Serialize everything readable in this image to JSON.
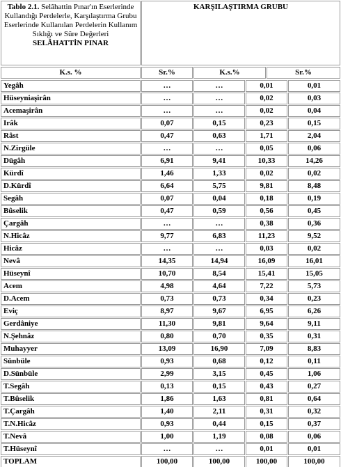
{
  "caption": {
    "label": "Tablo 2.1.",
    "text": "Selâhattin Pınar'ın Eserlerinde Kullandığı Perdelerle, Karşılaştırma Grubu Eserlerinde Kullanılan Perdelerin Kullanım Sıklığı ve Süre Değerleri",
    "author": "SELÂHATTİN PINAR"
  },
  "group_title": "KARŞILAŞTIRMA GRUBU",
  "columns": [
    "K.s. %",
    "Sr.%",
    "K.s.%",
    "Sr.%"
  ],
  "rows": [
    [
      "Yegâh",
      "…",
      "…",
      "0,01",
      "0,01"
    ],
    [
      "Hüseyniaşirân",
      "…",
      "…",
      "0,02",
      "0,03"
    ],
    [
      "Acemaşirân",
      "…",
      "…",
      "0,02",
      "0,04"
    ],
    [
      "Irâk",
      "0,07",
      "0,15",
      "0,23",
      "0,15"
    ],
    [
      "Râst",
      "0,47",
      "0,63",
      "1,71",
      "2,04"
    ],
    [
      "N.Zirgüle",
      "…",
      "…",
      "0,05",
      "0,06"
    ],
    [
      "Dügâh",
      "6,91",
      "9,41",
      "10,33",
      "14,26"
    ],
    [
      "Kürdî",
      "1,46",
      "1,33",
      "0,02",
      "0,02"
    ],
    [
      "D.Kürdî",
      "6,64",
      "5,75",
      "9,81",
      "8,48"
    ],
    [
      "Segâh",
      "0,07",
      "0,04",
      "0,18",
      "0,19"
    ],
    [
      "Bûselik",
      "0,47",
      "0,59",
      "0,56",
      "0,45"
    ],
    [
      "Çargâh",
      "…",
      "…",
      "0,38",
      "0,36"
    ],
    [
      "N.Hicâz",
      "9,77",
      "6,83",
      "11,23",
      "9,52"
    ],
    [
      "Hicâz",
      "…",
      "…",
      "0,03",
      "0,02"
    ],
    [
      "Nevâ",
      "14,35",
      "14,94",
      "16,09",
      "16,01"
    ],
    [
      "Hüseynî",
      "10,70",
      "8,54",
      "15,41",
      "15,05"
    ],
    [
      "Acem",
      "4,98",
      "4,64",
      "7,22",
      "5,73"
    ],
    [
      "D.Acem",
      "0,73",
      "0,73",
      "0,34",
      "0,23"
    ],
    [
      "Eviç",
      "8,97",
      "9,67",
      "6,95",
      "6,26"
    ],
    [
      "Gerdâniye",
      "11,30",
      "9,81",
      "9,64",
      "9,11"
    ],
    [
      "N.Şehnâz",
      "0,80",
      "0,70",
      "0,35",
      "0,31"
    ],
    [
      "Muhayyer",
      "13,09",
      "16,90",
      "7,09",
      "8,83"
    ],
    [
      "Sünbüle",
      "0,93",
      "0,68",
      "0,12",
      "0,11"
    ],
    [
      "D.Sünbüle",
      "2,99",
      "3,15",
      "0,45",
      "1,06"
    ],
    [
      "T.Segâh",
      "0,13",
      "0,15",
      "0,43",
      "0,27"
    ],
    [
      "T.Bûselik",
      "1,86",
      "1,63",
      "0,81",
      "0,64"
    ],
    [
      "T.Çargâh",
      "1,40",
      "2,11",
      "0,31",
      "0,32"
    ],
    [
      "T.N.Hicâz",
      "0,93",
      "0,44",
      "0,15",
      "0,37"
    ],
    [
      "T.Nevâ",
      "1,00",
      "1,19",
      "0,08",
      "0,06"
    ],
    [
      "T.Hüseynî",
      "…",
      "…",
      "0,01",
      "0,01"
    ],
    [
      "TOPLAM",
      "100,00",
      "100,00",
      "100,00",
      "100,00"
    ]
  ]
}
